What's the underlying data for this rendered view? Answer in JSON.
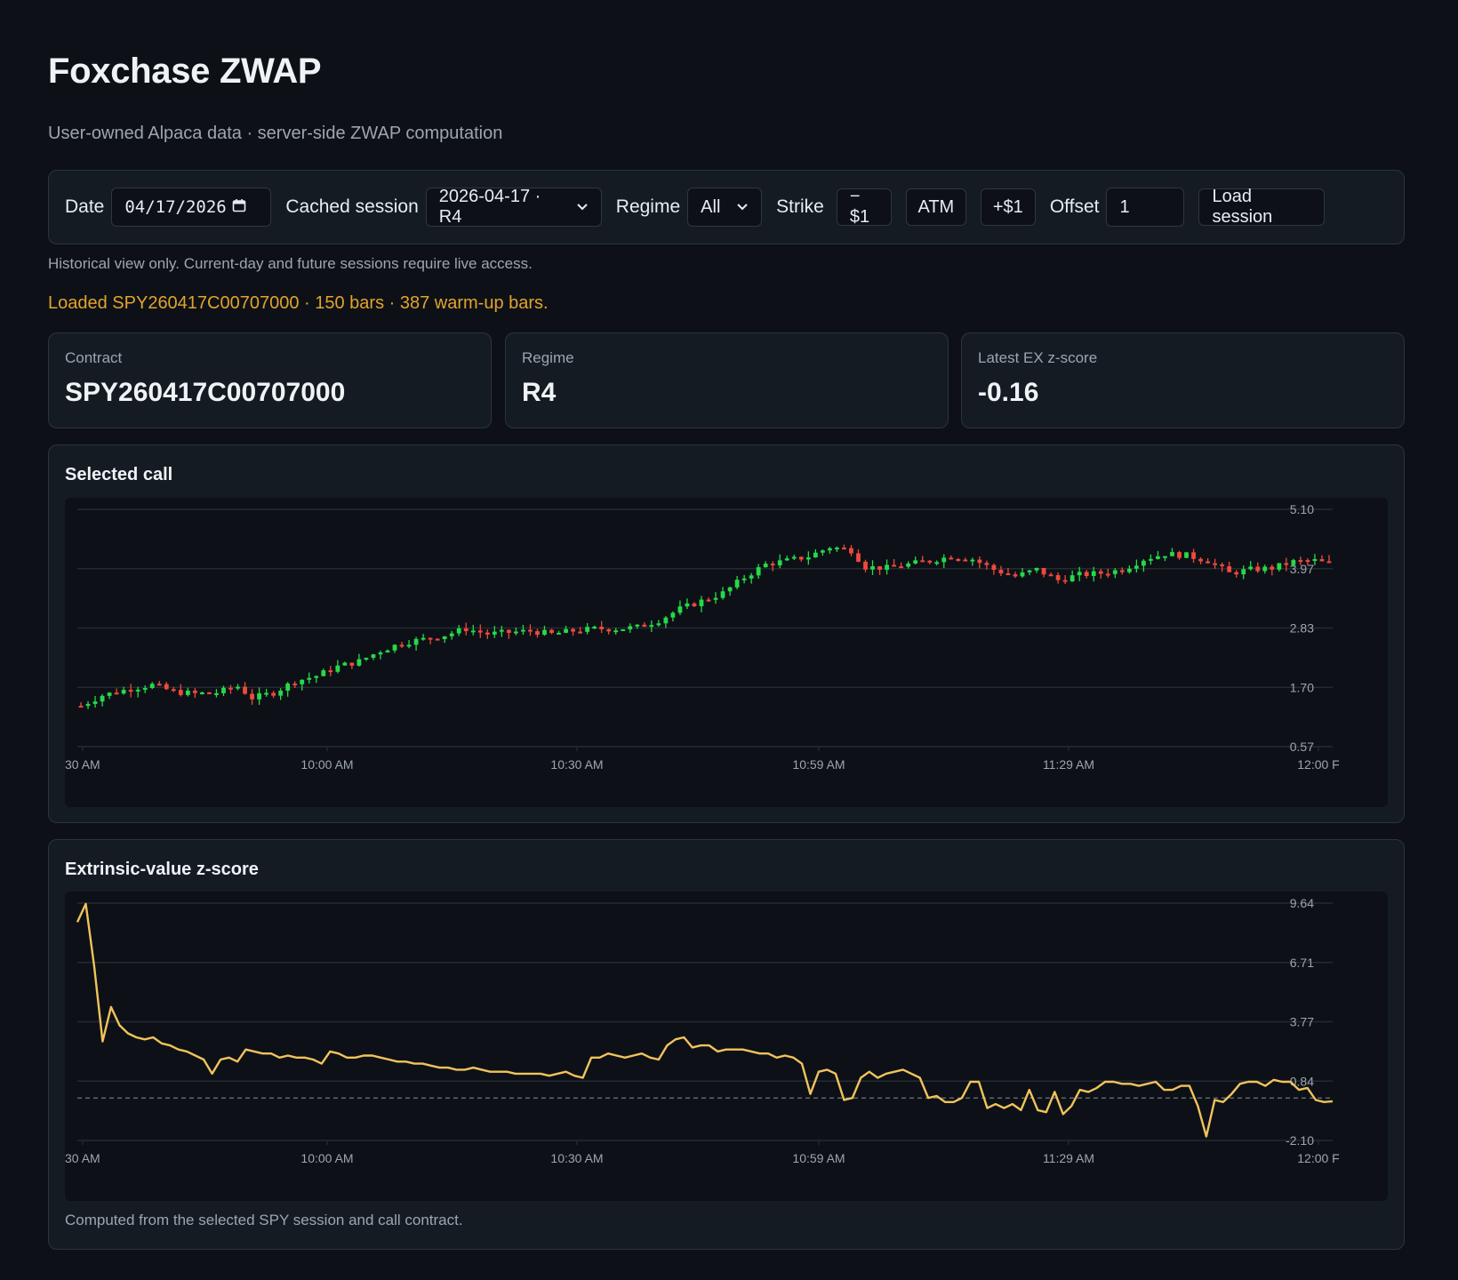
{
  "header": {
    "title": "Foxchase ZWAP",
    "subtitle": "User-owned Alpaca data · server-side ZWAP computation"
  },
  "toolbar": {
    "date_label": "Date",
    "date_value": "04/17/2026",
    "cached_label": "Cached session",
    "cached_value": "2026-04-17 · R4",
    "regime_label": "Regime",
    "regime_value": "All",
    "strike_label": "Strike",
    "strike_minus": "−$1",
    "strike_atm": "ATM",
    "strike_plus": "+$1",
    "offset_label": "Offset",
    "offset_value": "1",
    "load_label": "Load session"
  },
  "note": "Historical view only. Current-day and future sessions require live access.",
  "status": "Loaded SPY260417C00707000 · 150 bars · 387 warm-up bars.",
  "cards": {
    "contract": {
      "label": "Contract",
      "value": "SPY260417C00707000"
    },
    "regime": {
      "label": "Regime",
      "value": "R4"
    },
    "zscore": {
      "label": "Latest EX z-score",
      "value": "-0.16"
    }
  },
  "charts": {
    "call": {
      "title": "Selected call"
    },
    "zscore": {
      "title": "Extrinsic-value z-score",
      "footnote": "Computed from the selected SPY session and call contract."
    }
  },
  "colors": {
    "up": "#26d94a",
    "down": "#f0483e",
    "line": "#f2c35b",
    "grid": "#232a33",
    "axis_text": "#9da5b0"
  },
  "chart_data": [
    {
      "type": "candlestick",
      "title": "Selected call",
      "x_tick_labels": [
        "30 AM",
        "10:00 AM",
        "10:30 AM",
        "10:59 AM",
        "11:29 AM",
        "12:00 F"
      ],
      "y_tick_labels": [
        "5.10",
        "3.97",
        "2.83",
        "1.70",
        "0.57"
      ],
      "ylim": [
        0.57,
        5.1
      ],
      "bars": 150,
      "close_path": [
        [
          0,
          1.35
        ],
        [
          3,
          1.55
        ],
        [
          7,
          1.68
        ],
        [
          10,
          1.75
        ],
        [
          13,
          1.62
        ],
        [
          16,
          1.58
        ],
        [
          19,
          1.6
        ],
        [
          22,
          1.72
        ],
        [
          24,
          1.5
        ],
        [
          27,
          1.6
        ],
        [
          30,
          1.82
        ],
        [
          33,
          1.92
        ],
        [
          36,
          2.1
        ],
        [
          39,
          2.2
        ],
        [
          42,
          2.4
        ],
        [
          45,
          2.55
        ],
        [
          48,
          2.62
        ],
        [
          51,
          2.7
        ],
        [
          54,
          2.82
        ],
        [
          57,
          2.72
        ],
        [
          60,
          2.75
        ],
        [
          63,
          2.78
        ],
        [
          66,
          2.72
        ],
        [
          69,
          2.78
        ],
        [
          72,
          2.82
        ],
        [
          75,
          2.82
        ],
        [
          78,
          2.85
        ],
        [
          81,
          2.98
        ],
        [
          84,
          3.2
        ],
        [
          87,
          3.35
        ],
        [
          90,
          3.5
        ],
        [
          93,
          3.8
        ],
        [
          96,
          4.05
        ],
        [
          99,
          4.12
        ],
        [
          102,
          4.2
        ],
        [
          105,
          4.38
        ],
        [
          108,
          4.32
        ],
        [
          110,
          4.0
        ],
        [
          113,
          3.98
        ],
        [
          116,
          4.05
        ],
        [
          119,
          4.12
        ],
        [
          122,
          4.2
        ],
        [
          125,
          4.15
        ],
        [
          128,
          3.95
        ],
        [
          131,
          3.82
        ],
        [
          134,
          3.95
        ],
        [
          137,
          3.75
        ],
        [
          140,
          3.85
        ],
        [
          143,
          3.88
        ],
        [
          146,
          3.95
        ],
        [
          149,
          4.15
        ],
        [
          152,
          4.25
        ],
        [
          155,
          4.22
        ],
        [
          158,
          4.12
        ],
        [
          161,
          3.88
        ],
        [
          164,
          3.95
        ],
        [
          167,
          3.98
        ],
        [
          170,
          4.1
        ],
        [
          173,
          4.12
        ],
        [
          176,
          4.02
        ]
      ]
    },
    {
      "type": "line",
      "title": "Extrinsic-value z-score",
      "x_tick_labels": [
        "30 AM",
        "10:00 AM",
        "10:30 AM",
        "10:59 AM",
        "11:29 AM",
        "12:00 F"
      ],
      "y_tick_labels": [
        "9.64",
        "6.71",
        "3.77",
        "0.84",
        "-2.10"
      ],
      "ylim": [
        -2.1,
        9.64
      ],
      "reference_line": 0,
      "values": [
        8.7,
        9.6,
        6.5,
        2.8,
        4.5,
        3.6,
        3.2,
        3.0,
        2.9,
        3.0,
        2.7,
        2.6,
        2.4,
        2.3,
        2.1,
        1.9,
        1.2,
        1.9,
        2.0,
        1.8,
        2.4,
        2.3,
        2.2,
        2.2,
        2.0,
        2.1,
        2.0,
        2.0,
        1.9,
        1.7,
        2.3,
        2.2,
        2.0,
        2.0,
        2.1,
        2.1,
        2.0,
        1.9,
        1.8,
        1.8,
        1.7,
        1.7,
        1.6,
        1.5,
        1.5,
        1.4,
        1.4,
        1.5,
        1.4,
        1.3,
        1.3,
        1.3,
        1.2,
        1.2,
        1.2,
        1.2,
        1.1,
        1.2,
        1.3,
        1.1,
        1.0,
        2.0,
        2.0,
        2.2,
        2.1,
        2.0,
        2.1,
        2.2,
        2.0,
        1.9,
        2.6,
        2.9,
        3.0,
        2.5,
        2.6,
        2.6,
        2.3,
        2.4,
        2.4,
        2.4,
        2.3,
        2.2,
        2.2,
        2.0,
        2.1,
        2.0,
        1.7,
        0.2,
        1.3,
        1.4,
        1.2,
        -0.1,
        0.0,
        1.0,
        1.3,
        1.0,
        1.2,
        1.3,
        1.4,
        1.2,
        1.0,
        0.0,
        0.1,
        -0.2,
        -0.2,
        0.0,
        0.8,
        0.8,
        -0.5,
        -0.3,
        -0.5,
        -0.3,
        -0.6,
        0.4,
        -0.6,
        -0.7,
        0.3,
        -0.8,
        -0.4,
        0.4,
        0.3,
        0.5,
        0.8,
        0.8,
        0.7,
        0.7,
        0.6,
        0.7,
        0.8,
        0.4,
        0.4,
        0.6,
        0.6,
        -0.4,
        -1.9,
        -0.1,
        -0.2,
        0.2,
        0.7,
        0.8,
        0.8,
        0.6,
        0.9,
        0.8,
        0.8,
        0.4,
        0.5,
        -0.1,
        -0.2,
        -0.16
      ]
    }
  ]
}
